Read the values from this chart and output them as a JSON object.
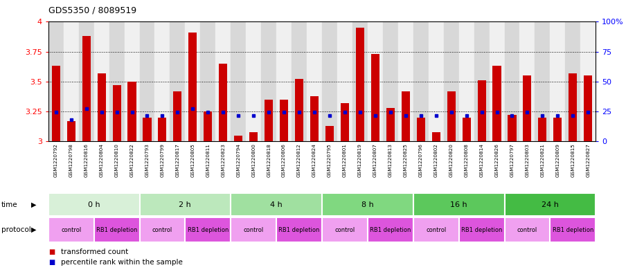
{
  "title": "GDS5350 / 8089519",
  "samples": [
    "GSM1220792",
    "GSM1220798",
    "GSM1220816",
    "GSM1220804",
    "GSM1220810",
    "GSM1220822",
    "GSM1220793",
    "GSM1220799",
    "GSM1220817",
    "GSM1220805",
    "GSM1220811",
    "GSM1220823",
    "GSM1220794",
    "GSM1220800",
    "GSM1220818",
    "GSM1220806",
    "GSM1220812",
    "GSM1220824",
    "GSM1220795",
    "GSM1220801",
    "GSM1220819",
    "GSM1220807",
    "GSM1220813",
    "GSM1220825",
    "GSM1220796",
    "GSM1220802",
    "GSM1220820",
    "GSM1220808",
    "GSM1220814",
    "GSM1220826",
    "GSM1220797",
    "GSM1220803",
    "GSM1220821",
    "GSM1220809",
    "GSM1220815",
    "GSM1220827"
  ],
  "red_values": [
    3.63,
    3.17,
    3.88,
    3.57,
    3.47,
    3.5,
    3.2,
    3.2,
    3.42,
    3.91,
    3.25,
    3.65,
    3.05,
    3.08,
    3.35,
    3.35,
    3.52,
    3.38,
    3.13,
    3.32,
    3.95,
    3.73,
    3.28,
    3.42,
    3.2,
    3.08,
    3.42,
    3.2,
    3.51,
    3.63,
    3.22,
    3.55,
    3.2,
    3.2,
    3.57,
    3.55
  ],
  "blue_values": [
    3.245,
    3.18,
    3.275,
    3.245,
    3.245,
    3.245,
    3.215,
    3.215,
    3.245,
    3.275,
    3.245,
    3.245,
    3.215,
    3.215,
    3.245,
    3.245,
    3.245,
    3.245,
    3.215,
    3.245,
    3.245,
    3.215,
    3.245,
    3.215,
    3.215,
    3.215,
    3.245,
    3.215,
    3.245,
    3.245,
    3.215,
    3.245,
    3.215,
    3.215,
    3.215,
    3.245
  ],
  "time_groups": [
    {
      "label": "0 h",
      "start": 0,
      "end": 6,
      "color": "#d8f0d8"
    },
    {
      "label": "2 h",
      "start": 6,
      "end": 12,
      "color": "#bce8bc"
    },
    {
      "label": "4 h",
      "start": 12,
      "end": 18,
      "color": "#a0e0a0"
    },
    {
      "label": "8 h",
      "start": 18,
      "end": 24,
      "color": "#80d880"
    },
    {
      "label": "16 h",
      "start": 24,
      "end": 30,
      "color": "#5cc85c"
    },
    {
      "label": "24 h",
      "start": 30,
      "end": 36,
      "color": "#44bb44"
    }
  ],
  "protocol_groups": [
    {
      "label": "control",
      "start": 0,
      "end": 3
    },
    {
      "label": "RB1 depletion",
      "start": 3,
      "end": 6
    },
    {
      "label": "control",
      "start": 6,
      "end": 9
    },
    {
      "label": "RB1 depletion",
      "start": 9,
      "end": 12
    },
    {
      "label": "control",
      "start": 12,
      "end": 15
    },
    {
      "label": "RB1 depletion",
      "start": 15,
      "end": 18
    },
    {
      "label": "control",
      "start": 18,
      "end": 21
    },
    {
      "label": "RB1 depletion",
      "start": 21,
      "end": 24
    },
    {
      "label": "control",
      "start": 24,
      "end": 27
    },
    {
      "label": "RB1 depletion",
      "start": 27,
      "end": 30
    },
    {
      "label": "control",
      "start": 30,
      "end": 33
    },
    {
      "label": "RB1 depletion",
      "start": 33,
      "end": 36
    }
  ],
  "control_color": "#f0a0f0",
  "depletion_color": "#dd55dd",
  "ymin": 3.0,
  "ymax": 4.0,
  "yticks_left": [
    3.0,
    3.25,
    3.5,
    3.75,
    4.0
  ],
  "yticks_right": [
    0,
    25,
    50,
    75,
    100
  ],
  "bar_color": "#cc0000",
  "dot_color": "#0000cc",
  "col_bg_even": "#d8d8d8",
  "col_bg_odd": "#f0f0f0"
}
